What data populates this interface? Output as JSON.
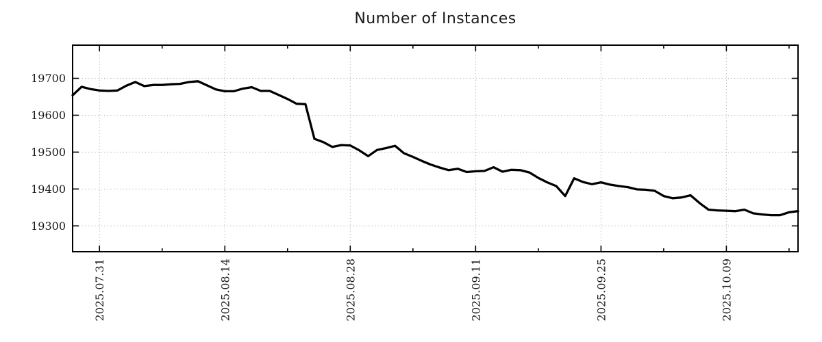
{
  "title": "Number of Instances",
  "colors": {
    "background": "#ffffff",
    "line": "#000000",
    "grid": "#ababab",
    "axis": "#000000",
    "text": "#1a1a1a"
  },
  "chart_data": {
    "type": "line",
    "title": "Number of Instances",
    "legend": "none",
    "grid": "dotted",
    "x_axis": {
      "start_date": "2025-07-28",
      "end_date": "2025-10-17",
      "interval": "daily",
      "major_tick_labels": [
        "2025.07.31",
        "2025.08.14",
        "2025.08.28",
        "2025.09.11",
        "2025.09.25",
        "2025.10.09"
      ],
      "major_tick_day_index": [
        3,
        17,
        31,
        45,
        59,
        73
      ],
      "minor_tick_day_index": [
        10,
        24,
        38,
        52,
        66,
        80
      ]
    },
    "y_axis": {
      "tick_labels": [
        "19300",
        "19400",
        "19500",
        "19600",
        "19700"
      ],
      "tick_values": [
        19300,
        19400,
        19500,
        19600,
        19700
      ],
      "range": [
        19230,
        19790
      ]
    },
    "series": [
      {
        "name": "Number of Instances",
        "color": "#000000",
        "values": [
          19654,
          19677,
          19671,
          19667,
          19666,
          19667,
          19680,
          19690,
          19679,
          19682,
          19682,
          19684,
          19685,
          19690,
          19692,
          19681,
          19670,
          19665,
          19665,
          19672,
          19676,
          19666,
          19666,
          19655,
          19644,
          19631,
          19630,
          19536,
          19527,
          19514,
          19519,
          19518,
          19505,
          19489,
          19506,
          19511,
          19517,
          19497,
          19487,
          19476,
          19466,
          19458,
          19451,
          19455,
          19446,
          19448,
          19449,
          19459,
          19447,
          19452,
          19451,
          19445,
          19430,
          19418,
          19408,
          19381,
          19429,
          19419,
          19413,
          19418,
          19412,
          19408,
          19405,
          19399,
          19398,
          19395,
          19381,
          19375,
          19377,
          19383,
          19362,
          19344,
          19342,
          19341,
          19340,
          19344,
          19334,
          19331,
          19329,
          19329,
          19337,
          19340
        ]
      }
    ]
  }
}
